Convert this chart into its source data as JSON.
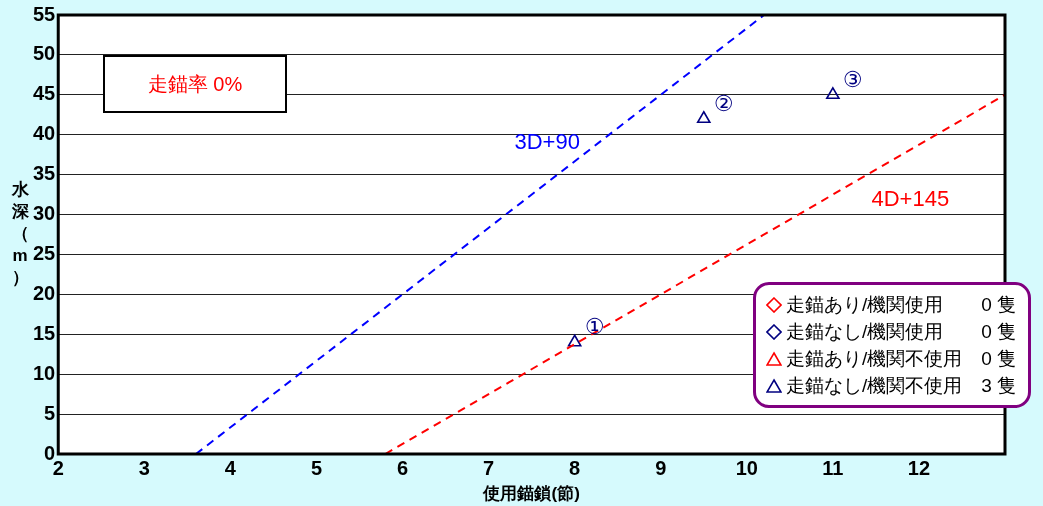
{
  "chart_data": {
    "type": "scatter",
    "xlabel": "使用錨鎖(節)",
    "ylabel": "水深（m）",
    "xlim": [
      2,
      13
    ],
    "xticks": [
      2,
      3,
      4,
      5,
      6,
      7,
      8,
      9,
      10,
      11,
      12
    ],
    "ylim": [
      0,
      55
    ],
    "yticks": [
      0,
      5,
      10,
      15,
      20,
      25,
      30,
      35,
      40,
      45,
      50,
      55
    ],
    "grid": "y",
    "legend": "bottom right",
    "series": [
      {
        "name": "3D+90",
        "type": "line",
        "color": "#0000ff",
        "line_style": "dashed",
        "marker": "none",
        "x": [
          3.6,
          10.2
        ],
        "values": [
          0,
          55
        ]
      },
      {
        "name": "4D+145",
        "type": "line",
        "color": "#ff0000",
        "line_style": "dashed",
        "marker": "none",
        "x": [
          5.8,
          13
        ],
        "values": [
          0,
          45
        ]
      },
      {
        "name": "走錨あり/機関使用　　0 隻",
        "color": "#ff0000",
        "marker": "diamond"
      },
      {
        "name": "走錨なし/機関使用　　0 隻",
        "color": "#000080",
        "marker": "diamond"
      },
      {
        "name": "走錨あり/機関不使用　0 隻",
        "color": "#ff0000",
        "marker": "triangle"
      },
      {
        "name": "走錨なし/機関不使用　3 隻",
        "color": "#000080",
        "marker": "triangle",
        "x": [
          8,
          9.5,
          11
        ],
        "values": [
          14,
          42,
          45
        ]
      }
    ],
    "annotations": [
      "走錨率 0%",
      {
        "text": "①",
        "x": 8,
        "y": 14
      },
      {
        "text": "②",
        "x": 9.5,
        "y": 42
      },
      {
        "text": "③",
        "x": 11,
        "y": 45
      }
    ]
  }
}
